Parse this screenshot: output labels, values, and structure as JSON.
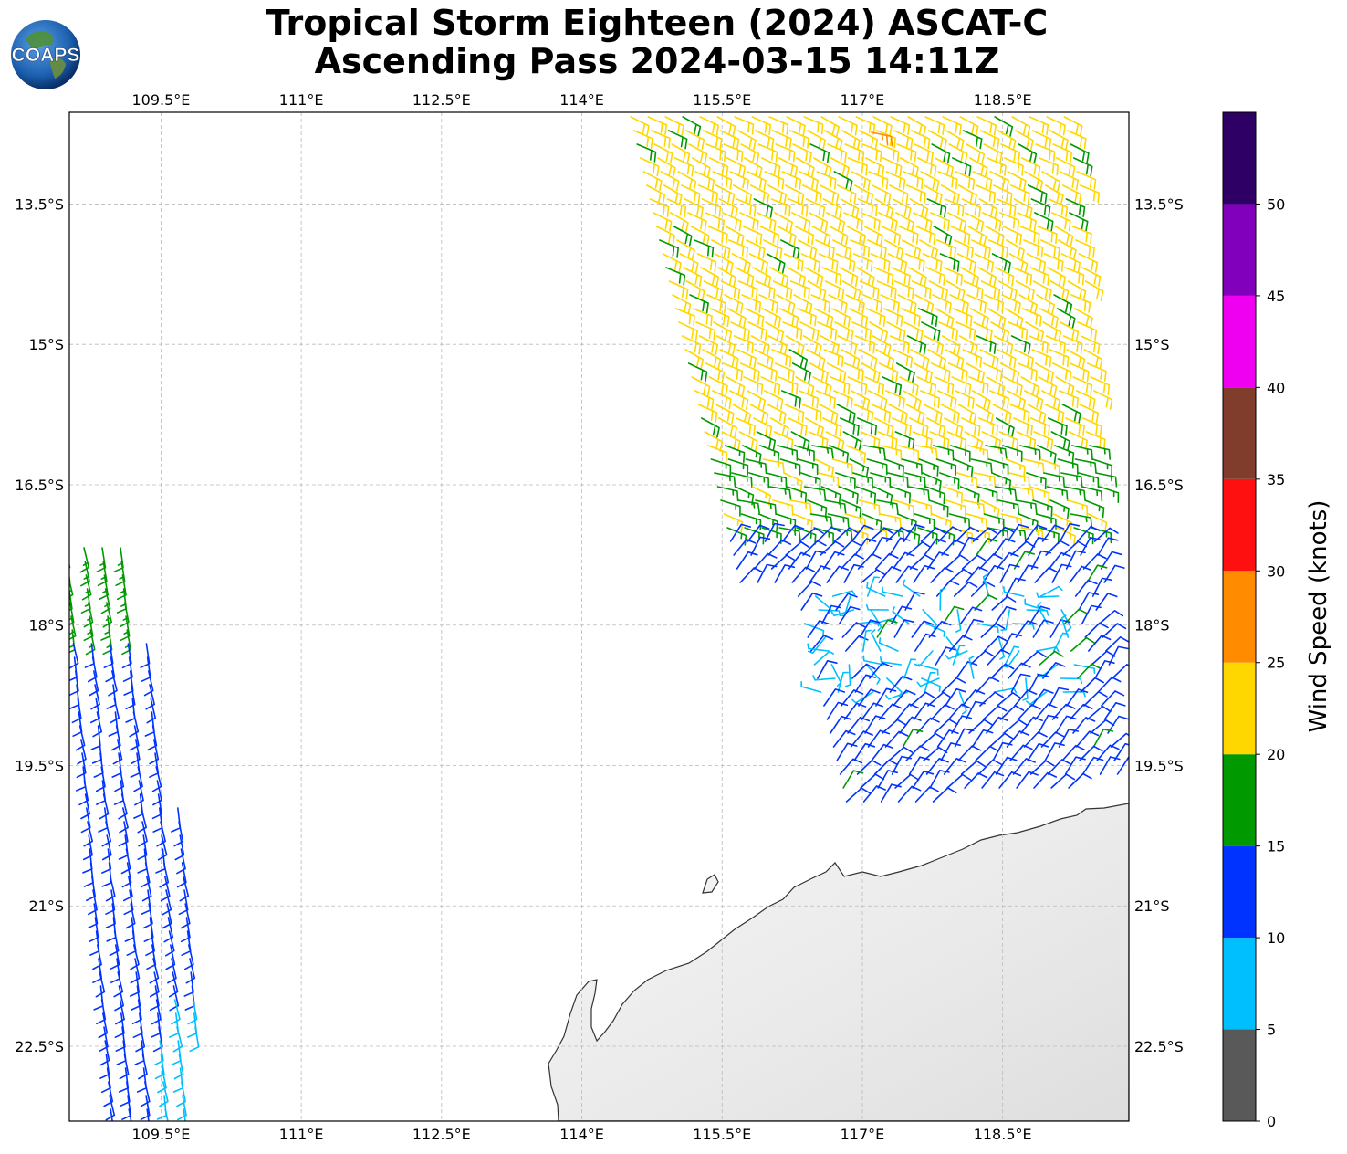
{
  "title": {
    "line1": "Tropical Storm Eighteen (2024) ASCAT-C",
    "line2": "Ascending Pass 2024-03-15 14:11Z"
  },
  "logo": {
    "text": "COAPS",
    "icon": "earth-globe-icon"
  },
  "map": {
    "lon_ticks": [
      "109.5°E",
      "111°E",
      "112.5°E",
      "114°E",
      "115.5°E",
      "117°E",
      "118.5°E"
    ],
    "lon_values": [
      109.5,
      111.0,
      112.5,
      114.0,
      115.5,
      117.0,
      118.5
    ],
    "lat_ticks": [
      "13.5°S",
      "15°S",
      "16.5°S",
      "18°S",
      "19.5°S",
      "21°S",
      "22.5°S"
    ],
    "lat_values": [
      -13.5,
      -15.0,
      -16.5,
      -18.0,
      -19.5,
      -21.0,
      -22.5
    ],
    "lon_range": [
      108.52,
      119.85
    ],
    "lat_range": [
      -23.3,
      -12.52
    ],
    "land_color": "#f2f2f2",
    "coast_color": "#333333",
    "grid": true
  },
  "colorbar": {
    "label": "Wind Speed (knots)",
    "ticks": [
      "0",
      "5",
      "10",
      "15",
      "20",
      "25",
      "30",
      "35",
      "40",
      "45",
      "50"
    ],
    "bins": [
      {
        "from": 0,
        "to": 5,
        "color": "#595959"
      },
      {
        "from": 5,
        "to": 10,
        "color": "#00bfff"
      },
      {
        "from": 10,
        "to": 15,
        "color": "#0033ff"
      },
      {
        "from": 15,
        "to": 20,
        "color": "#009900"
      },
      {
        "from": 20,
        "to": 25,
        "color": "#ffd700"
      },
      {
        "from": 25,
        "to": 30,
        "color": "#ff8c00"
      },
      {
        "from": 30,
        "to": 35,
        "color": "#ff1010"
      },
      {
        "from": 35,
        "to": 40,
        "color": "#803d2b"
      },
      {
        "from": 40,
        "to": 45,
        "color": "#f000f0"
      },
      {
        "from": 45,
        "to": 50,
        "color": "#8000bb"
      },
      {
        "from": 50,
        "to": 55,
        "color": "#2e0066"
      }
    ]
  },
  "wind_swaths": [
    {
      "name": "east-pass",
      "dominant_speed_kt": [
        20,
        25
      ],
      "core_speed_kt": [
        5,
        15
      ]
    },
    {
      "name": "west-pass",
      "dominant_speed_kt": [
        10,
        15
      ]
    }
  ]
}
